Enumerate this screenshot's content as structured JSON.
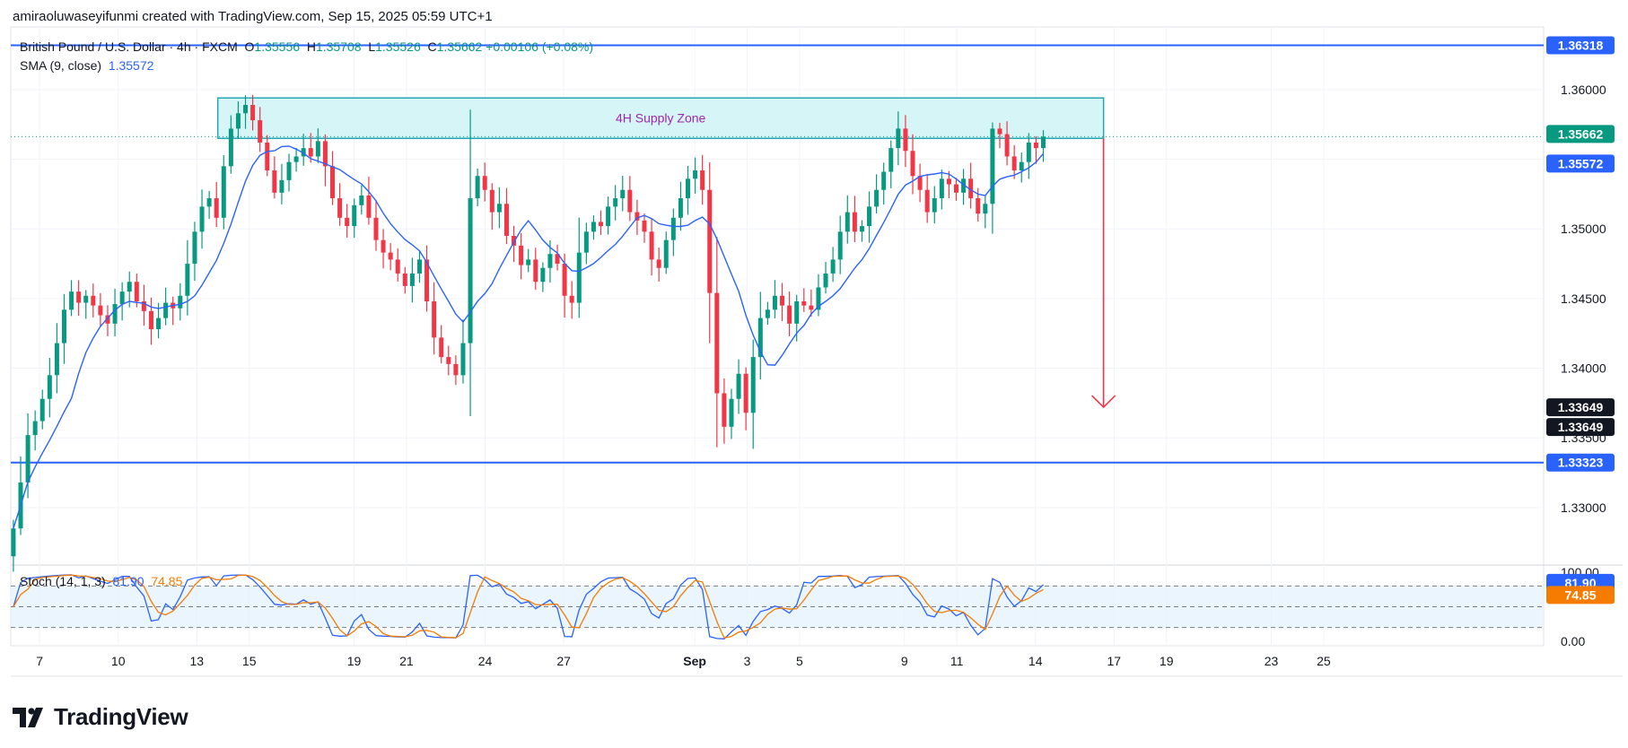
{
  "header": {
    "created_text": "amiraoluwaseyifunmi created with TradingView.com, Sep 15, 2025 05:59 UTC+1"
  },
  "legend": {
    "symbol": "British Pound / U.S. Dollar · 4h · FXCM",
    "o_label": "O",
    "o_value": "1.35556",
    "h_label": "H",
    "h_value": "1.35708",
    "l_label": "L",
    "l_value": "1.35526",
    "c_label": "C",
    "c_value": "1.35662",
    "change": "+0.00106 (+0.08%)",
    "sma_label": "SMA (9, close)",
    "sma_value": "1.35572",
    "stoch_label": "Stoch (14, 1, 3)",
    "stoch_k": "81.90",
    "stoch_d": "74.85"
  },
  "footer": {
    "logo_text": "TradingView"
  },
  "colors": {
    "up": "#089981",
    "down": "#f23645",
    "sma": "#2962ff",
    "level": "#2962ff",
    "zone_fill": "#d6f5f7",
    "zone_border": "#22a7b7",
    "zone_text": "#9c27b0",
    "arrow": "#f23645",
    "stoch_k": "#2962ff",
    "stoch_d": "#f57c00"
  },
  "chart_data": {
    "type": "candlestick",
    "symbol": "GBPUSD",
    "timeframe": "4h",
    "ylim": [
      1.326,
      1.3645
    ],
    "price_ticks": [
      "1.36000",
      "1.35500",
      "1.35000",
      "1.34500",
      "1.34000",
      "1.33500",
      "1.33000"
    ],
    "price_tick_values": [
      1.36,
      1.355,
      1.35,
      1.345,
      1.34,
      1.335,
      1.33
    ],
    "x_ticks": [
      {
        "label": "7",
        "day": 7,
        "bold": false
      },
      {
        "label": "10",
        "day": 10,
        "bold": false
      },
      {
        "label": "13",
        "day": 13,
        "bold": false
      },
      {
        "label": "15",
        "day": 15,
        "bold": false
      },
      {
        "label": "19",
        "day": 19,
        "bold": false
      },
      {
        "label": "21",
        "day": 21,
        "bold": false
      },
      {
        "label": "24",
        "day": 24,
        "bold": false
      },
      {
        "label": "27",
        "day": 27,
        "bold": false
      },
      {
        "label": "Sep",
        "day": 32,
        "bold": true
      },
      {
        "label": "3",
        "day": 34,
        "bold": false
      },
      {
        "label": "5",
        "day": 36,
        "bold": false
      },
      {
        "label": "9",
        "day": 40,
        "bold": false
      },
      {
        "label": "11",
        "day": 42,
        "bold": false
      },
      {
        "label": "14",
        "day": 45,
        "bold": false
      },
      {
        "label": "17",
        "day": 48,
        "bold": false
      },
      {
        "label": "19",
        "day": 50,
        "bold": false
      },
      {
        "label": "23",
        "day": 54,
        "bold": false
      },
      {
        "label": "25",
        "day": 56,
        "bold": false
      }
    ],
    "horizontal_levels": [
      {
        "price": 1.36318,
        "label": "1.36318"
      },
      {
        "price": 1.33323,
        "label": "1.33323"
      }
    ],
    "price_labels": [
      {
        "price": 1.35662,
        "label": "1.35662",
        "kind": "close"
      },
      {
        "price": 1.35572,
        "label": "1.35572",
        "kind": "sma"
      },
      {
        "price": 1.33649,
        "label": "1.33649",
        "kind": "marker"
      },
      {
        "price": 1.33649,
        "label": "1.33649",
        "kind": "marker2"
      }
    ],
    "supply_zone": {
      "label": "4H Supply Zone",
      "price_top": 1.3594,
      "price_bottom": 1.3565,
      "day_start": 13.8,
      "day_end": 47.6
    },
    "arrow": {
      "day": 47.6,
      "price_from": 1.3565,
      "price_to": 1.3372
    },
    "closes": [
      1.3285,
      1.3318,
      1.3352,
      1.3362,
      1.3378,
      1.3395,
      1.3418,
      1.3442,
      1.3455,
      1.3447,
      1.3452,
      1.3445,
      1.3438,
      1.3432,
      1.3446,
      1.3455,
      1.3462,
      1.3448,
      1.3441,
      1.3428,
      1.3436,
      1.3447,
      1.3443,
      1.3452,
      1.3475,
      1.3498,
      1.3516,
      1.3522,
      1.3508,
      1.3545,
      1.3572,
      1.3583,
      1.3589,
      1.3578,
      1.3562,
      1.3542,
      1.3526,
      1.3535,
      1.3548,
      1.3552,
      1.3558,
      1.3552,
      1.3563,
      1.3545,
      1.3522,
      1.3508,
      1.3502,
      1.3517,
      1.3524,
      1.3508,
      1.3492,
      1.3483,
      1.3478,
      1.3468,
      1.3459,
      1.3468,
      1.3478,
      1.3448,
      1.3422,
      1.3408,
      1.3403,
      1.3395,
      1.3418,
      1.3522,
      1.3538,
      1.3528,
      1.3512,
      1.3518,
      1.3495,
      1.3488,
      1.3474,
      1.3478,
      1.3462,
      1.3472,
      1.3482,
      1.3475,
      1.3452,
      1.3447,
      1.3483,
      1.3498,
      1.3505,
      1.3502,
      1.3516,
      1.3522,
      1.3528,
      1.3512,
      1.3506,
      1.3498,
      1.3478,
      1.3472,
      1.3492,
      1.3508,
      1.3522,
      1.3536,
      1.3542,
      1.3528,
      1.3454,
      1.3382,
      1.3358,
      1.3378,
      1.3396,
      1.3368,
      1.3408,
      1.3436,
      1.3442,
      1.3452,
      1.3445,
      1.3432,
      1.3448,
      1.3445,
      1.3442,
      1.3458,
      1.3468,
      1.3478,
      1.3498,
      1.3512,
      1.3498,
      1.3502,
      1.3516,
      1.3528,
      1.3541,
      1.3558,
      1.3572,
      1.3556,
      1.3538,
      1.3528,
      1.3512,
      1.3522,
      1.3536,
      1.3532,
      1.3526,
      1.3536,
      1.3522,
      1.3511,
      1.3518,
      1.3572,
      1.3568,
      1.3552,
      1.3542,
      1.3548,
      1.3562,
      1.3558,
      1.35662
    ],
    "sma_period": 9,
    "stochastic": {
      "k_label": "81.90",
      "d_label": "74.85",
      "ylim": [
        0,
        100
      ],
      "ticks": [
        {
          "value": 100,
          "label": "100.00"
        },
        {
          "value": 0,
          "label": "0.00"
        }
      ],
      "bands": [
        80,
        50,
        20
      ],
      "k_last": 81.9,
      "d_last": 74.85
    }
  }
}
